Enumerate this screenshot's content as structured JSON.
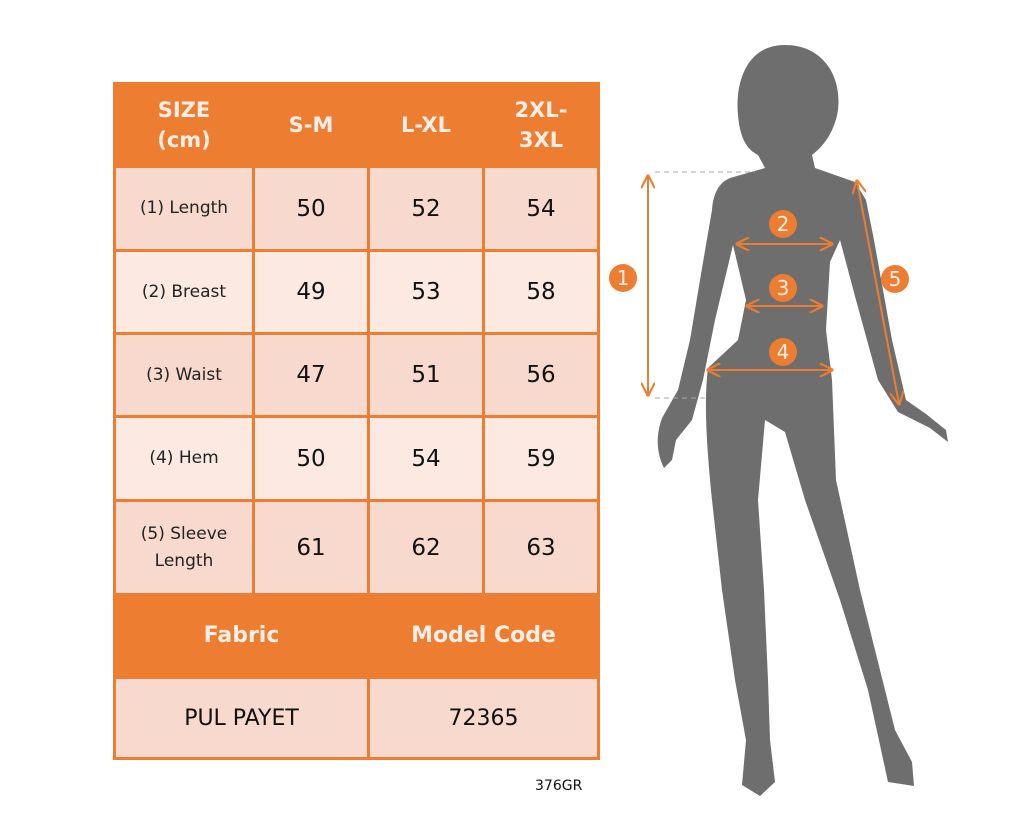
{
  "header": {
    "size_label": "SIZE\n(cm)",
    "sizes": [
      "S-M",
      "L-XL",
      "2XL-\n3XL"
    ]
  },
  "rows": [
    {
      "label": "(1) Length",
      "values": [
        "50",
        "52",
        "54"
      ]
    },
    {
      "label": "(2) Breast",
      "values": [
        "49",
        "53",
        "58"
      ]
    },
    {
      "label": "(3) Waist",
      "values": [
        "47",
        "51",
        "56"
      ]
    },
    {
      "label": "(4) Hem",
      "values": [
        "50",
        "54",
        "59"
      ]
    },
    {
      "label": "(5) Sleeve\nLength",
      "values": [
        "61",
        "62",
        "63"
      ]
    }
  ],
  "footer": {
    "fabric_label": "Fabric",
    "model_code_label": "Model Code",
    "fabric": "PUL PAYET",
    "model_code": "72365"
  },
  "product_code": "376GR",
  "markers": [
    "1",
    "2",
    "3",
    "4",
    "5"
  ],
  "colors": {
    "accent": "#ED7D31",
    "cell_dark": "#F8D9CD",
    "cell_light": "#FBE9E2",
    "silhouette": "#6E6E6E"
  }
}
